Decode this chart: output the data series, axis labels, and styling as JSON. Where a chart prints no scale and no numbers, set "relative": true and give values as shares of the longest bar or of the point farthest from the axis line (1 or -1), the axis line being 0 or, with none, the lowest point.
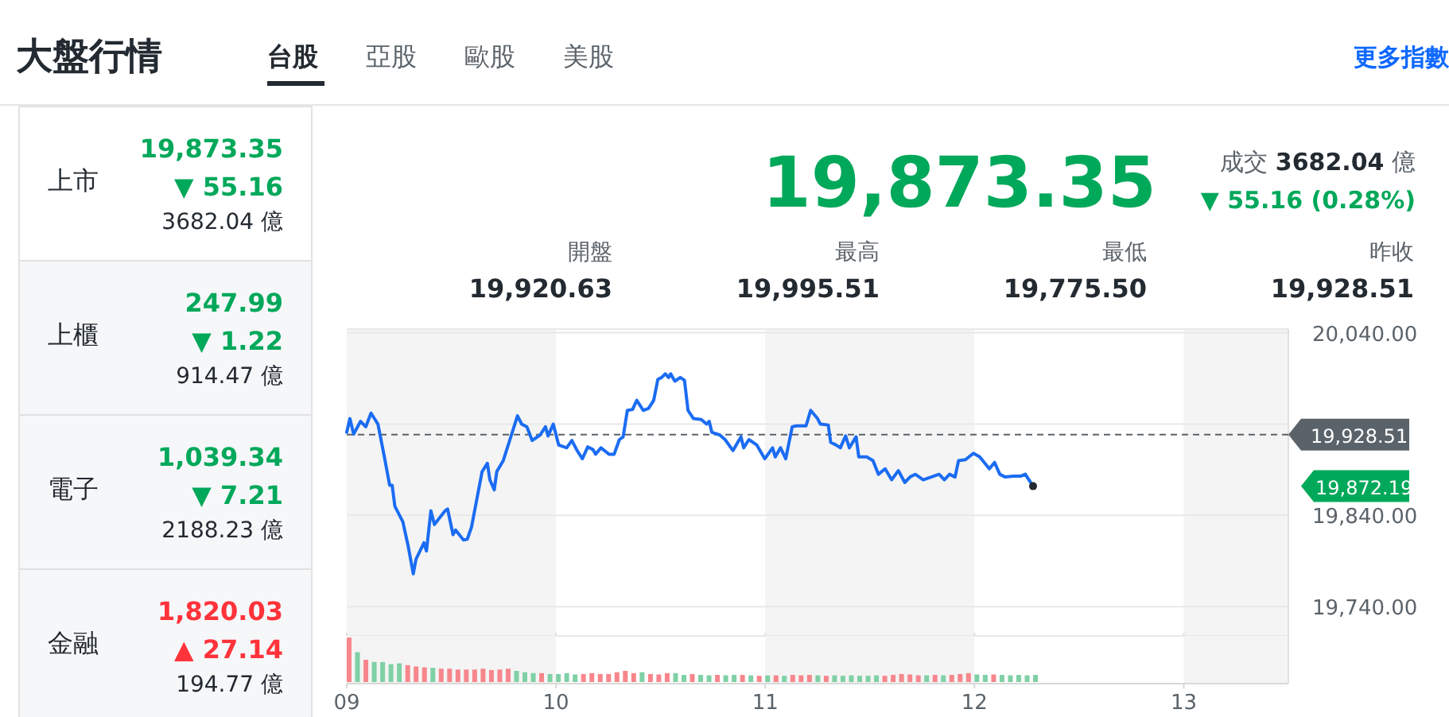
{
  "chart_data": [
    {
      "type": "other",
      "title": "大盤行情",
      "annotations": [
        "台股",
        "亞股",
        "歐股",
        "美股",
        "更多指數",
        "上市",
        "19,873.35",
        "▼ 55.16",
        "3682.04 億",
        "上櫃",
        "247.99",
        "▼ 1.22",
        "914.47 億",
        "電子",
        "1,039.34",
        "▼ 7.21",
        "2188.23 億",
        "金融",
        "1,820.03",
        "▲ 27.14",
        "194.77 億",
        "19,873.35",
        "成交",
        "3682.04",
        "億",
        "▼ 55.16 (0.28%)",
        "開盤",
        "19,920.63",
        "最高",
        "19,995.51",
        "最低",
        "19,775.50",
        "昨收",
        "19,928.51"
      ],
      "colors": [
        "#232a31",
        "#5b636a",
        "#5b636a",
        "#5b636a",
        "#0f69ff",
        "#232a31",
        "#00a85a",
        "#00a85a",
        "#232a31",
        "#232a31",
        "#00a85a",
        "#00a85a",
        "#232a31",
        "#232a31",
        "#00a85a",
        "#00a85a",
        "#232a31",
        "#232a31",
        "#ff333a",
        "#ff333a",
        "#232a31",
        "#00a85a",
        "#5b636a",
        "#232a31",
        "#5b636a",
        "#00a85a",
        "#5b636a",
        "#232a31",
        "#5b636a",
        "#232a31",
        "#5b636a",
        "#232a31",
        "#5b636a",
        "#232a31"
      ]
    },
    {
      "type": "line",
      "xlim": [
        9,
        13.5
      ],
      "ylim": [
        19708,
        20044
      ],
      "yticks": [
        {
          "value": 19740,
          "label": "19,740.00"
        },
        {
          "value": 19840,
          "label": "19,840.00"
        },
        {
          "value": 19940,
          "label": null
        },
        {
          "value": 20040,
          "label": "20,040.00"
        }
      ],
      "xticks": [
        9,
        10,
        11,
        12,
        13
      ],
      "tick_labels": "y",
      "grid": "y",
      "marker": "none",
      "line_style": "solid",
      "bands": [
        {
          "axis": "x",
          "from": 9,
          "to": 10,
          "color": "#f4f4f4"
        },
        {
          "axis": "x",
          "from": 11,
          "to": 12,
          "color": "#f4f4f4"
        },
        {
          "axis": "x",
          "from": 13,
          "to": 13.5,
          "color": "#f4f4f4"
        }
      ],
      "ref_lines": [
        {
          "axis": "y",
          "value": 19928.51,
          "label": "19,928.51",
          "color": "#5b636a",
          "line_style": "dashed"
        }
      ],
      "annotations": [
        "19,872.19"
      ],
      "x": [
        9.0,
        9.015,
        9.033,
        9.066,
        9.091,
        9.116,
        9.149,
        9.179,
        9.205,
        9.217,
        9.23,
        9.268,
        9.293,
        9.318,
        9.331,
        9.369,
        9.381,
        9.402,
        9.419,
        9.47,
        9.482,
        9.508,
        9.52,
        9.558,
        9.576,
        9.596,
        9.647,
        9.672,
        9.684,
        9.705,
        9.717,
        9.748,
        9.78,
        9.816,
        9.836,
        9.861,
        9.886,
        9.924,
        9.95,
        9.962,
        9.987,
        10.013,
        10.051,
        10.076,
        10.101,
        10.126,
        10.152,
        10.177,
        10.189,
        10.215,
        10.253,
        10.278,
        10.303,
        10.321,
        10.341,
        10.366,
        10.386,
        10.417,
        10.442,
        10.467,
        10.487,
        10.505,
        10.523,
        10.538,
        10.548,
        10.568,
        10.594,
        10.614,
        10.631,
        10.657,
        10.694,
        10.72,
        10.732,
        10.745,
        10.783,
        10.808,
        10.846,
        10.884,
        10.897,
        10.922,
        10.96,
        10.998,
        11.035,
        11.048,
        11.073,
        11.098,
        11.129,
        11.149,
        11.195,
        11.217,
        11.25,
        11.263,
        11.301,
        11.313,
        11.339,
        11.359,
        11.384,
        11.402,
        11.434,
        11.447,
        11.485,
        11.515,
        11.541,
        11.573,
        11.604,
        11.636,
        11.667,
        11.692,
        11.717,
        11.755,
        11.793,
        11.831,
        11.856,
        11.881,
        11.907,
        11.924,
        11.957,
        11.995,
        12.025,
        12.071,
        12.096,
        12.121,
        12.147,
        12.184,
        12.222,
        12.243,
        12.26,
        12.28
      ],
      "series": [
        {
          "color": "#1b6cf2",
          "values": [
            19931,
            19946,
            19929,
            19943,
            19937,
            19952,
            19940,
            19905,
            19873,
            19873,
            19850,
            19833,
            19807,
            19776,
            19792,
            19810,
            19801,
            19845,
            19830,
            19845,
            19847,
            19819,
            19824,
            19813,
            19814,
            19827,
            19888,
            19897,
            19879,
            19868,
            19888,
            19900,
            19923,
            19949,
            19940,
            19937,
            19922,
            19928,
            19937,
            19927,
            19940,
            19917,
            19914,
            19922,
            19911,
            19902,
            19915,
            19912,
            19907,
            19914,
            19907,
            19907,
            19923,
            19926,
            19955,
            19956,
            19966,
            19955,
            19957,
            19966,
            19989,
            19991,
            19995,
            19991,
            19995,
            19987,
            19991,
            19988,
            19955,
            19946,
            19945,
            19940,
            19943,
            19931,
            19928,
            19923,
            19911,
            19926,
            19914,
            19923,
            19917,
            19902,
            19914,
            19904,
            19914,
            19902,
            19937,
            19938,
            19938,
            19955,
            19946,
            19940,
            19939,
            19920,
            19917,
            19914,
            19927,
            19914,
            19926,
            19904,
            19904,
            19900,
            19885,
            19891,
            19879,
            19889,
            19876,
            19882,
            19885,
            19879,
            19882,
            19885,
            19879,
            19885,
            19882,
            19900,
            19901,
            19908,
            19904,
            19891,
            19898,
            19885,
            19882,
            19883,
            19883,
            19885,
            19879,
            19872
          ]
        },
        {
          "type": "scatter",
          "marker": "circle",
          "color": "#232a31",
          "x": [
            12.28
          ],
          "values": [
            19872
          ]
        }
      ]
    },
    {
      "type": "bar",
      "relative": true,
      "tick_labels": "x",
      "xlim": [
        9,
        13.5
      ],
      "xticks": [
        {
          "value": 9,
          "label": "09"
        },
        {
          "value": 10,
          "label": "10"
        },
        {
          "value": 11,
          "label": "11"
        },
        {
          "value": 12,
          "label": "12"
        },
        {
          "value": 13,
          "label": "13"
        }
      ],
      "bands": [
        {
          "axis": "x",
          "from": 9,
          "to": 10,
          "color": "#f4f4f4"
        },
        {
          "axis": "x",
          "from": 11,
          "to": 12,
          "color": "#f4f4f4"
        },
        {
          "axis": "x",
          "from": 13,
          "to": 13.5,
          "color": "#f4f4f4"
        }
      ],
      "x": [
        9.0,
        9.04,
        9.08,
        9.12,
        9.16,
        9.2,
        9.24,
        9.28,
        9.32,
        9.36,
        9.4,
        9.44,
        9.48,
        9.52,
        9.56,
        9.6,
        9.64,
        9.68,
        9.72,
        9.76,
        9.8,
        9.84,
        9.88,
        9.92,
        9.96,
        10.0,
        10.04,
        10.08,
        10.12,
        10.16,
        10.2,
        10.24,
        10.28,
        10.32,
        10.36,
        10.4,
        10.44,
        10.48,
        10.52,
        10.56,
        10.6,
        10.64,
        10.68,
        10.72,
        10.76,
        10.8,
        10.84,
        10.88,
        10.92,
        10.96,
        11.0,
        11.04,
        11.08,
        11.12,
        11.16,
        11.2,
        11.24,
        11.28,
        11.32,
        11.36,
        11.4,
        11.44,
        11.48,
        11.52,
        11.56,
        11.6,
        11.64,
        11.68,
        11.72,
        11.76,
        11.8,
        11.84,
        11.88,
        11.92,
        11.96,
        12.0,
        12.04,
        12.08,
        12.12,
        12.16,
        12.2,
        12.24,
        12.28
      ],
      "values": [
        1.0,
        0.67,
        0.5,
        0.45,
        0.45,
        0.4,
        0.42,
        0.38,
        0.35,
        0.33,
        0.32,
        0.3,
        0.3,
        0.28,
        0.28,
        0.28,
        0.3,
        0.27,
        0.28,
        0.3,
        0.25,
        0.22,
        0.2,
        0.2,
        0.18,
        0.18,
        0.2,
        0.17,
        0.18,
        0.2,
        0.18,
        0.18,
        0.22,
        0.25,
        0.2,
        0.22,
        0.18,
        0.17,
        0.2,
        0.2,
        0.16,
        0.18,
        0.16,
        0.15,
        0.16,
        0.15,
        0.16,
        0.16,
        0.15,
        0.14,
        0.15,
        0.15,
        0.14,
        0.16,
        0.15,
        0.16,
        0.15,
        0.14,
        0.15,
        0.14,
        0.15,
        0.14,
        0.14,
        0.15,
        0.14,
        0.16,
        0.18,
        0.17,
        0.15,
        0.15,
        0.16,
        0.15,
        0.16,
        0.18,
        0.2,
        0.17,
        0.16,
        0.17,
        0.16,
        0.15,
        0.16,
        0.15,
        0.16
      ],
      "colors": [
        "#f7868c",
        "#7fd0a5",
        "#f7868c",
        "#7fd0a5",
        "#7fd0a5",
        "#7fd0a5",
        "#7fd0a5",
        "#f7868c",
        "#f7868c",
        "#f7868c",
        "#7fd0a5",
        "#f7868c",
        "#f7868c",
        "#f7868c",
        "#f7868c",
        "#f7868c",
        "#f7868c",
        "#f7868c",
        "#f7868c",
        "#f7868c",
        "#7fd0a5",
        "#7fd0a5",
        "#7fd0a5",
        "#f7868c",
        "#7fd0a5",
        "#7fd0a5",
        "#7fd0a5",
        "#7fd0a5",
        "#f7868c",
        "#f7868c",
        "#f7868c",
        "#f7868c",
        "#f7868c",
        "#f7868c",
        "#f7868c",
        "#7fd0a5",
        "#f7868c",
        "#f7868c",
        "#f7868c",
        "#7fd0a5",
        "#7fd0a5",
        "#f7868c",
        "#7fd0a5",
        "#7fd0a5",
        "#f7868c",
        "#7fd0a5",
        "#7fd0a5",
        "#f7868c",
        "#7fd0a5",
        "#f7868c",
        "#7fd0a5",
        "#f7868c",
        "#7fd0a5",
        "#f7868c",
        "#f7868c",
        "#f7868c",
        "#7fd0a5",
        "#f7868c",
        "#7fd0a5",
        "#7fd0a5",
        "#7fd0a5",
        "#7fd0a5",
        "#7fd0a5",
        "#7fd0a5",
        "#f7868c",
        "#f7868c",
        "#f7868c",
        "#f7868c",
        "#f7868c",
        "#7fd0a5",
        "#f7868c",
        "#7fd0a5",
        "#f7868c",
        "#f7868c",
        "#f7868c",
        "#7fd0a5",
        "#7fd0a5",
        "#f7868c",
        "#7fd0a5",
        "#7fd0a5",
        "#7fd0a5",
        "#7fd0a5",
        "#7fd0a5"
      ]
    }
  ]
}
